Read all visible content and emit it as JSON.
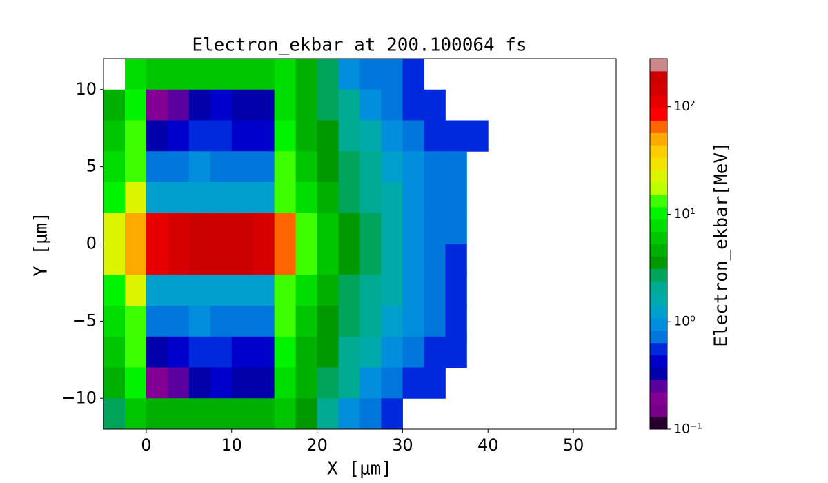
{
  "chart_data": {
    "type": "heatmap",
    "title": "Electron_ekbar at 200.100064 fs",
    "xlabel": "X [μm]",
    "ylabel": "Y [μm]",
    "colorbar_label": "Electron_ekbar[MeV]",
    "xlim": [
      -5,
      55
    ],
    "ylim": [
      -12,
      12
    ],
    "xticks": [
      0,
      10,
      20,
      30,
      40,
      50
    ],
    "yticks": [
      {
        "value": -10,
        "label": "−10"
      },
      {
        "value": -5,
        "label": "−5"
      },
      0,
      5,
      10
    ],
    "x_edges": [
      -5,
      -2.5,
      0,
      2.5,
      5,
      7.5,
      10,
      12.5,
      15,
      17.5,
      20,
      22.5,
      25,
      27.5,
      30,
      32.5,
      35,
      37.5,
      40
    ],
    "y_edges": [
      12,
      10,
      8,
      6,
      4,
      2,
      0,
      -2,
      -4,
      -6,
      -8,
      -10,
      -12
    ],
    "z": [
      [
        null,
        8,
        6,
        6,
        6,
        6,
        6,
        6,
        8,
        5,
        3,
        1,
        0.8,
        0.8,
        0.6,
        null,
        null,
        null
      ],
      [
        5,
        10,
        0.2,
        0.25,
        0.3,
        0.4,
        0.35,
        0.3,
        8,
        5,
        3,
        2,
        1,
        0.8,
        0.6,
        0.5,
        null,
        null
      ],
      [
        6,
        12,
        0.3,
        0.4,
        0.5,
        0.5,
        0.45,
        0.4,
        10,
        5,
        4,
        2,
        1.5,
        1,
        0.8,
        0.6,
        0.5,
        0.5
      ],
      [
        8,
        15,
        0.7,
        0.8,
        0.9,
        0.8,
        0.7,
        0.7,
        12,
        6,
        4,
        3,
        2,
        1.2,
        1,
        0.8,
        0.7,
        null
      ],
      [
        10,
        20,
        1.2,
        1.3,
        1.3,
        1.2,
        1.1,
        1.2,
        15,
        8,
        5,
        3,
        2,
        1.5,
        1,
        0.8,
        0.7,
        null
      ],
      [
        20,
        50,
        120,
        150,
        180,
        200,
        170,
        150,
        60,
        15,
        6,
        4,
        2.5,
        1.5,
        1,
        0.8,
        0.7,
        null
      ],
      [
        20,
        50,
        120,
        150,
        190,
        200,
        170,
        150,
        60,
        15,
        6,
        4,
        2.5,
        1.5,
        1,
        0.8,
        0.6,
        null
      ],
      [
        10,
        20,
        1.2,
        1.3,
        1.3,
        1.2,
        1.1,
        1.2,
        15,
        8,
        5,
        3,
        2,
        1.5,
        1,
        0.8,
        0.6,
        null
      ],
      [
        8,
        15,
        0.7,
        0.8,
        0.9,
        0.8,
        0.7,
        0.7,
        12,
        6,
        4,
        3,
        2,
        1.2,
        1,
        0.8,
        0.6,
        null
      ],
      [
        6,
        12,
        0.3,
        0.4,
        0.5,
        0.5,
        0.45,
        0.4,
        10,
        5,
        4,
        2,
        1.5,
        1,
        0.8,
        0.6,
        0.5,
        null
      ],
      [
        5,
        10,
        0.2,
        0.25,
        0.3,
        0.4,
        0.35,
        0.3,
        8,
        5,
        3,
        2,
        1,
        0.8,
        0.6,
        0.5,
        null,
        null
      ],
      [
        3,
        6,
        5,
        5,
        5,
        5,
        5,
        5,
        6,
        4,
        2,
        1,
        0.8,
        0.6,
        null,
        null,
        null,
        null
      ]
    ],
    "clim": [
      0.1,
      280
    ],
    "color_scale": "log",
    "color_levels": 30,
    "cticks": [
      {
        "value": 0.1,
        "label": "10⁻¹"
      },
      {
        "value": 1,
        "label": "10⁰"
      },
      {
        "value": 10,
        "label": "10¹"
      },
      {
        "value": 100,
        "label": "10²"
      }
    ],
    "colormap": [
      "#000000",
      "#770088",
      "#880099",
      "#0000aa",
      "#0000dd",
      "#0077dd",
      "#0099dd",
      "#00aaaa",
      "#00aa88",
      "#009900",
      "#00bb00",
      "#00dd00",
      "#00ff00",
      "#bbff00",
      "#eeee00",
      "#ffcc00",
      "#ff9900",
      "#ff0000",
      "#dd0000",
      "#cc0000",
      "#cccccc"
    ]
  }
}
